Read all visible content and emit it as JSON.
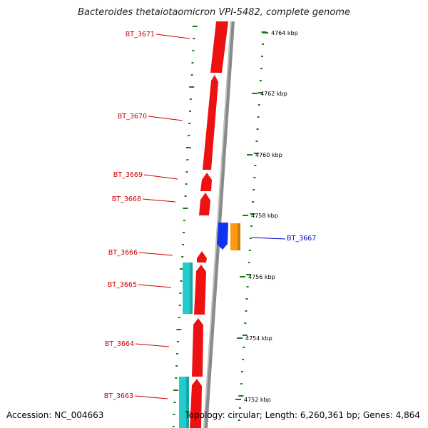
{
  "title": "Bacteroides thetaiotaomicron VPI-5482, complete genome",
  "footer": {
    "accession": "Accession: NC_004663",
    "summary": "Topology: circular; Length: 6,260,361 bp; Genes: 4,864"
  },
  "colors": {
    "backbone": "#8a8a8a",
    "forward_gene": "#ee1111",
    "reverse_gene": "#1133ee",
    "orange_feature": "#ff9911",
    "cyan_feature": "#22cccc",
    "tick": "#1a7a1a",
    "label_red": "#cc0000",
    "label_blue": "#0000cc"
  },
  "ticks": [
    {
      "label": "4764 kbp"
    },
    {
      "label": "4762 kbp"
    },
    {
      "label": "4760 kbp"
    },
    {
      "label": "4758 kbp"
    },
    {
      "label": "4756 kbp"
    },
    {
      "label": "4754 kbp"
    },
    {
      "label": "4752 kbp"
    }
  ],
  "genes": [
    {
      "name": "BT_3671"
    },
    {
      "name": "BT_3670"
    },
    {
      "name": "BT_3669"
    },
    {
      "name": "BT_3668"
    },
    {
      "name": "BT_3667"
    },
    {
      "name": "BT_3666"
    },
    {
      "name": "BT_3665"
    },
    {
      "name": "BT_3664"
    },
    {
      "name": "BT_3663"
    }
  ]
}
